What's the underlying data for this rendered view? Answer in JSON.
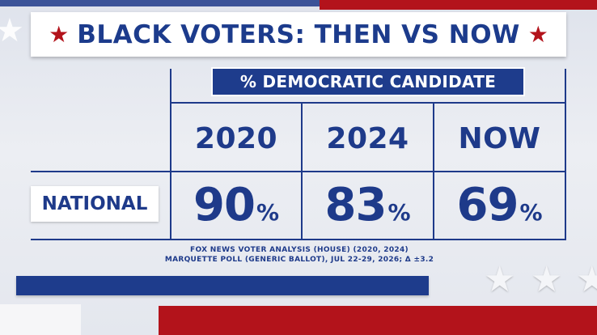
{
  "title": "BLACK VOTERS: THEN VS NOW",
  "subheader": "% DEMOCRATIC CANDIDATE",
  "icons": {
    "title_left": "red-star-icon",
    "title_right": "red-star-icon",
    "decor": "white-star-icon"
  },
  "colors": {
    "navy": "#1e3a8a",
    "red": "#b3131b",
    "white": "#ffffff"
  },
  "chart_data": {
    "type": "table",
    "title": "BLACK VOTERS: THEN VS NOW",
    "column_group_label": "% DEMOCRATIC CANDIDATE",
    "columns": [
      "2020",
      "2024",
      "NOW"
    ],
    "rows": [
      {
        "label": "NATIONAL",
        "values": [
          90,
          83,
          69
        ],
        "unit": "%"
      }
    ]
  },
  "source": {
    "line1": "FOX NEWS VOTER ANALYSIS (HOUSE) (2020, 2024)",
    "line2": "MARQUETTE POLL (GENERIC BALLOT), JUL 22-29, 2026; Δ ±3.2"
  }
}
